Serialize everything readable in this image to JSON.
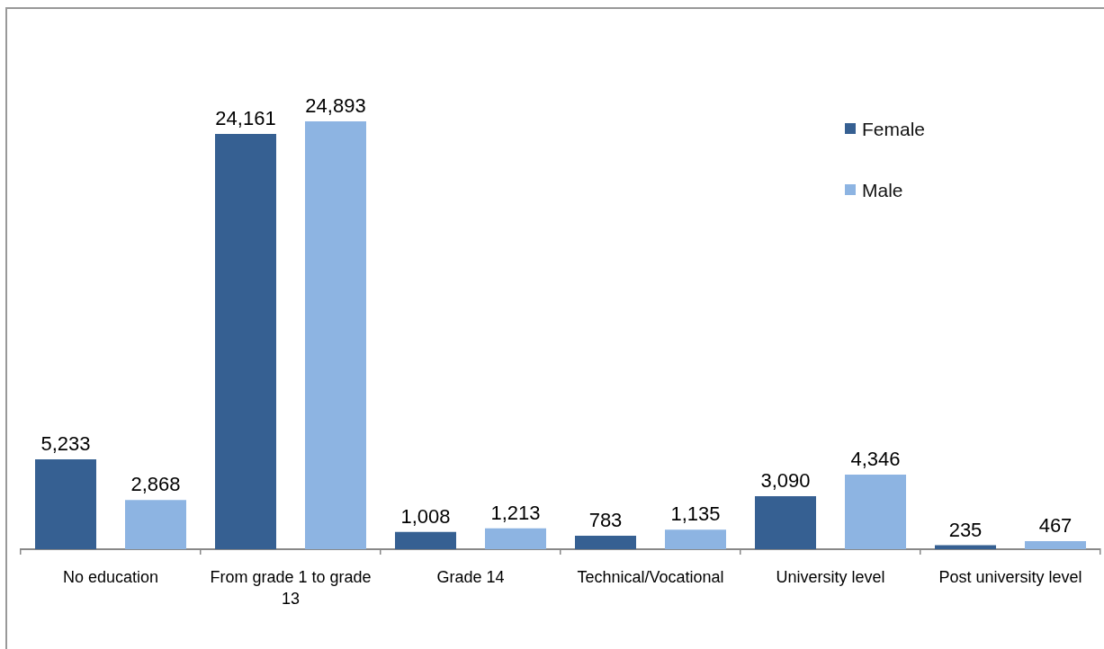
{
  "chart_data": {
    "type": "bar",
    "categories": [
      "No education",
      "From grade 1 to grade 13",
      "Grade 14",
      "Technical/Vocational",
      "University level",
      "Post university level"
    ],
    "series": [
      {
        "name": "Female",
        "color": "#366092",
        "values": [
          5233,
          24161,
          1008,
          783,
          3090,
          235
        ],
        "value_labels": [
          "5,233",
          "24,161",
          "1,008",
          "783",
          "3,090",
          "235"
        ]
      },
      {
        "name": "Male",
        "color": "#8db4e2",
        "values": [
          2868,
          24893,
          1213,
          1135,
          4346,
          467
        ],
        "value_labels": [
          "2,868",
          "24,893",
          "1,213",
          "1,135",
          "4,346",
          "467"
        ]
      }
    ],
    "legend": "top right",
    "grid": false,
    "tick_labels": "x"
  }
}
